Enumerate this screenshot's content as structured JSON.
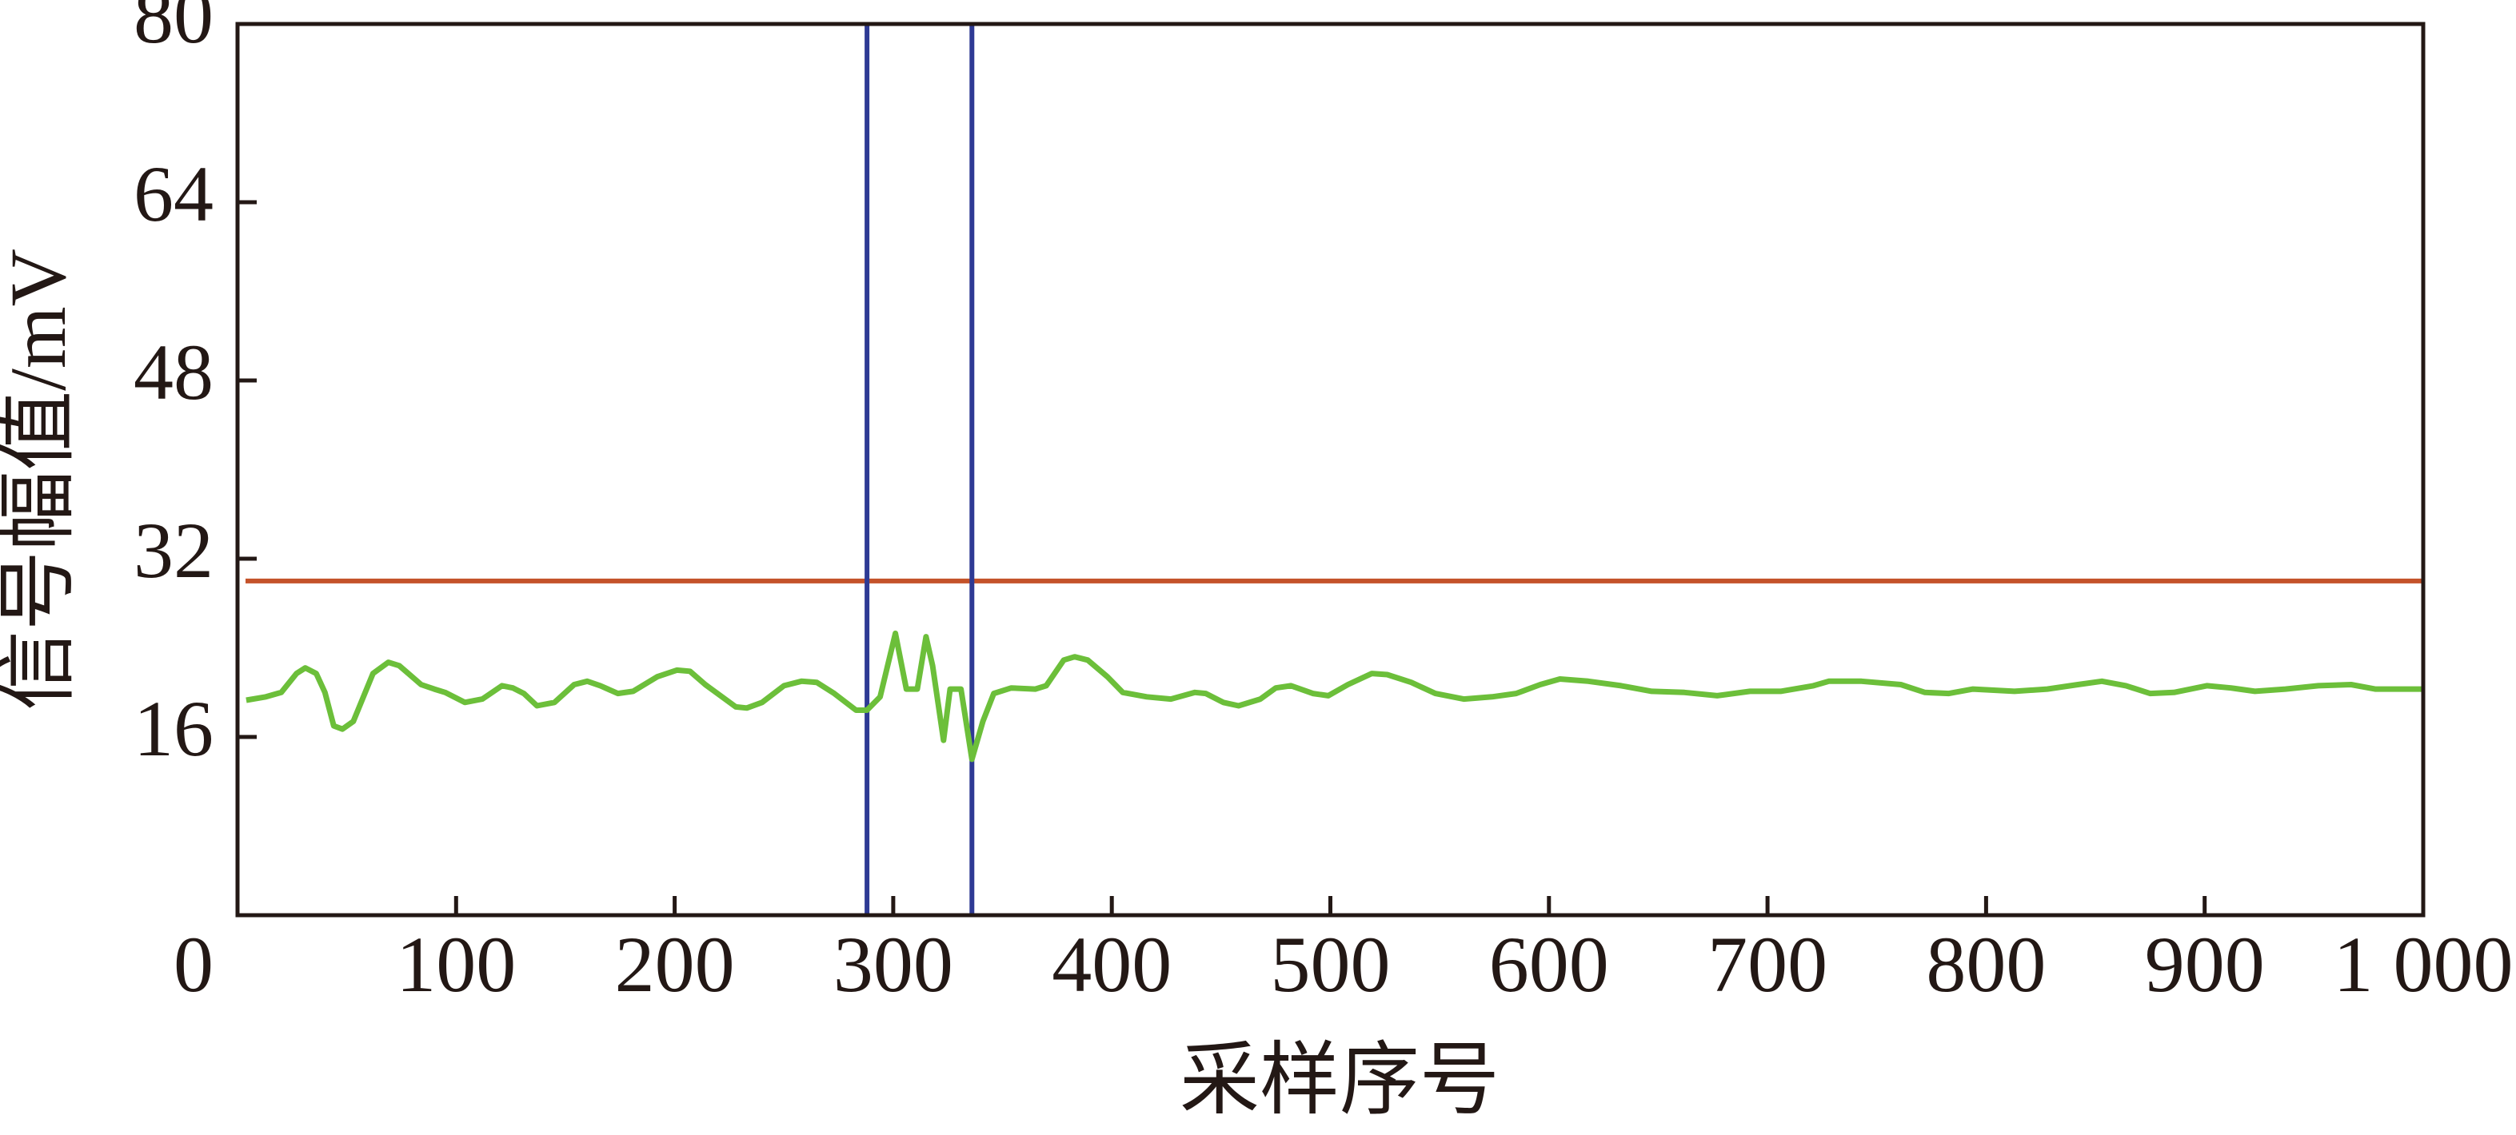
{
  "chart_data": {
    "type": "line",
    "xlabel": "采样序号",
    "ylabel": "信号幅值/mV",
    "x": [
      4,
      13,
      20,
      27,
      31,
      36,
      40,
      44,
      48,
      53,
      62,
      69,
      74,
      84,
      90,
      95,
      104,
      112,
      121,
      126,
      131,
      137,
      145,
      154,
      160,
      166,
      174,
      181,
      192,
      201,
      207,
      214,
      228,
      233,
      240,
      250,
      258,
      265,
      273,
      283,
      288,
      294,
      301,
      306,
      311,
      315,
      318,
      323,
      326,
      331,
      336,
      341,
      346,
      354,
      365,
      370,
      378,
      383,
      389,
      398,
      405,
      416,
      427,
      438,
      443,
      451,
      458,
      468,
      475,
      482,
      492,
      499,
      508,
      519,
      526,
      537,
      548,
      561,
      574,
      585,
      596,
      605,
      618,
      633,
      647,
      662,
      677,
      692,
      706,
      721,
      728,
      743,
      761,
      772,
      783,
      794,
      813,
      828,
      842,
      853,
      864,
      875,
      886,
      901,
      912,
      923,
      937,
      952,
      967,
      978,
      1000
    ],
    "values": [
      19.3,
      19.6,
      20,
      21.7,
      22.2,
      21.7,
      20,
      17,
      16.7,
      17.4,
      21.7,
      22.7,
      22.4,
      20.7,
      20.3,
      20,
      19.1,
      19.4,
      20.6,
      20.4,
      19.9,
      18.8,
      19.1,
      20.7,
      21,
      20.6,
      19.9,
      20.1,
      21.4,
      22,
      21.9,
      20.7,
      18.7,
      18.6,
      19.1,
      20.6,
      21,
      20.9,
      19.9,
      18.4,
      18.4,
      19.6,
      25.3,
      20.3,
      20.3,
      25,
      22.4,
      15.7,
      20.3,
      20.3,
      14,
      17.4,
      19.9,
      20.4,
      20.3,
      20.6,
      22.9,
      23.2,
      22.9,
      21.4,
      20,
      19.6,
      19.4,
      20,
      19.9,
      19.1,
      18.8,
      19.4,
      20.4,
      20.6,
      19.9,
      19.7,
      20.7,
      21.7,
      21.6,
      20.9,
      19.9,
      19.4,
      19.6,
      19.9,
      20.7,
      21.2,
      21,
      20.6,
      20.1,
      20,
      19.7,
      20.1,
      20.1,
      20.6,
      21,
      21,
      20.7,
      20,
      19.9,
      20.3,
      20.1,
      20.3,
      20.7,
      21,
      20.6,
      19.9,
      20,
      20.6,
      20.4,
      20.1,
      20.3,
      20.6,
      20.7,
      20.3,
      20.3
    ],
    "color": "#6cbf3a",
    "hlines": [
      30
    ],
    "hline_color": "#c4532a",
    "vlines": [
      288,
      336
    ],
    "vline_color": "#2e3a94",
    "xlim": [
      0,
      1000
    ],
    "xticks": [
      0,
      100,
      200,
      300,
      400,
      500,
      600,
      700,
      800,
      900,
      {
        "value": 1000,
        "label": "1 000"
      }
    ],
    "ylim": [
      0,
      80
    ],
    "yticks": [
      16,
      32,
      48,
      64,
      80
    ]
  }
}
